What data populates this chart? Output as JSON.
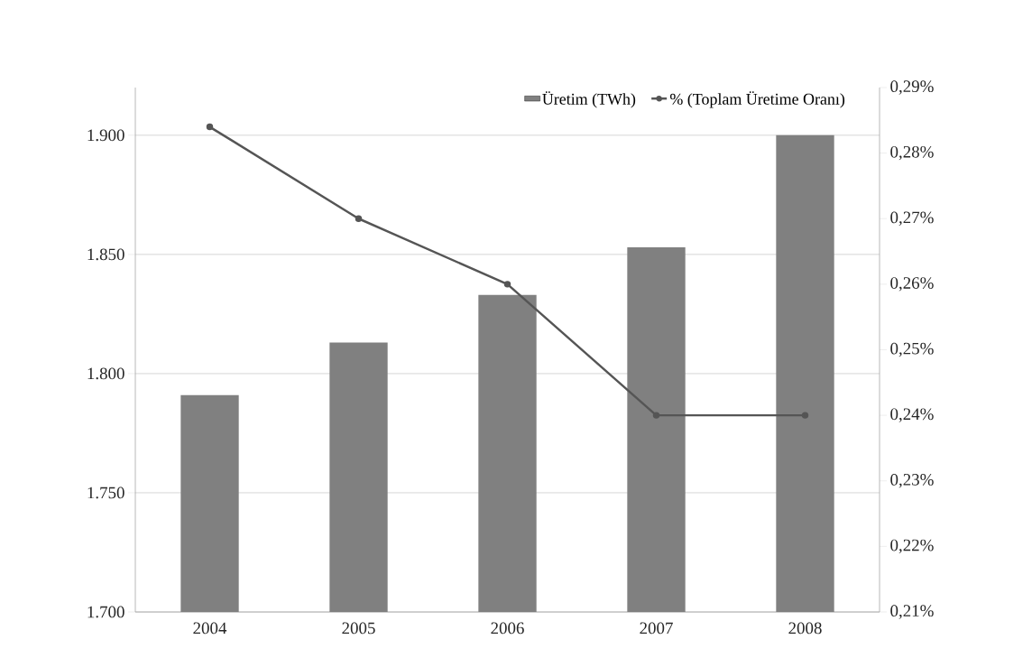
{
  "chart_data": {
    "type": "bar",
    "categories": [
      "2004",
      "2005",
      "2006",
      "2007",
      "2008"
    ],
    "series": [
      {
        "name": "Üretim (TWh)",
        "color": "#808080",
        "values": [
          1791,
          1813,
          1833,
          1853,
          1900
        ]
      },
      {
        "name": "% (Toplam Üretime Oranı)",
        "type": "line",
        "axis": "y2",
        "marker": "circle",
        "color": "#555555",
        "values": [
          0.284,
          0.27,
          0.26,
          0.24,
          0.24
        ]
      }
    ],
    "ylim": [
      1700,
      1920
    ],
    "yticks": [
      {
        "value": 1700,
        "label": "1.700"
      },
      {
        "value": 1750,
        "label": "1.750"
      },
      {
        "value": 1800,
        "label": "1.800"
      },
      {
        "value": 1850,
        "label": "1.850"
      },
      {
        "value": 1900,
        "label": "1.900"
      }
    ],
    "y2lim": [
      0.21,
      0.29
    ],
    "y2ticks": [
      {
        "value": 0.21,
        "label": "0,21%"
      },
      {
        "value": 0.22,
        "label": "0,22%"
      },
      {
        "value": 0.23,
        "label": "0,23%"
      },
      {
        "value": 0.24,
        "label": "0,24%"
      },
      {
        "value": 0.25,
        "label": "0,25%"
      },
      {
        "value": 0.26,
        "label": "0,26%"
      },
      {
        "value": 0.27,
        "label": "0,27%"
      },
      {
        "value": 0.28,
        "label": "0,28%"
      },
      {
        "value": 0.29,
        "label": "0,29%"
      }
    ],
    "grid": "y",
    "legend": "top right"
  }
}
